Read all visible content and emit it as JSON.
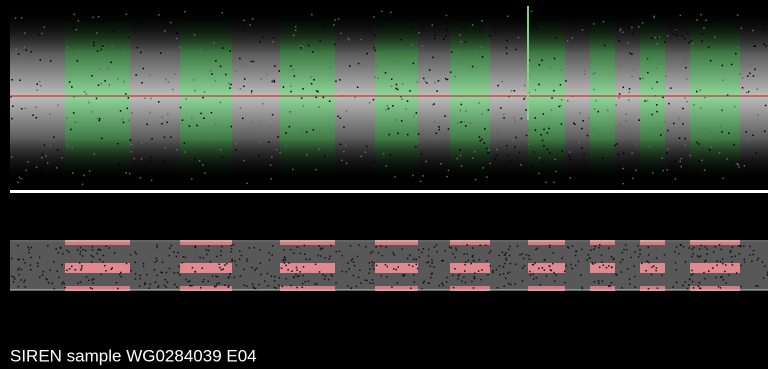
{
  "caption": "SIREN sample WG0284039 E04"
}
